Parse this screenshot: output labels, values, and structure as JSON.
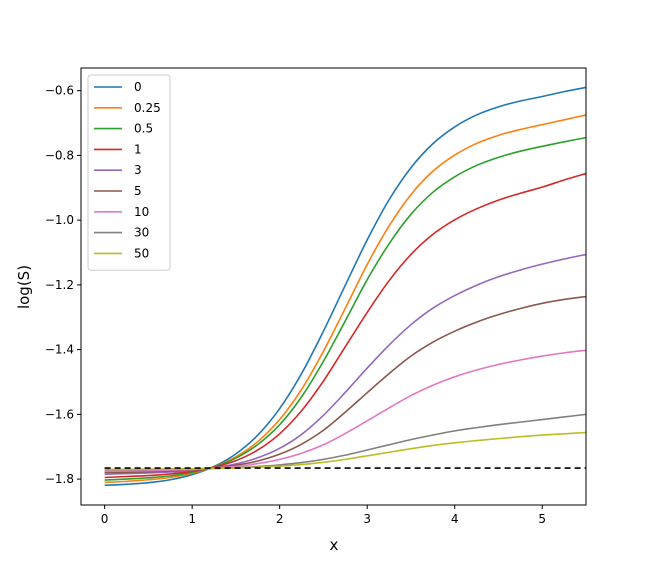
{
  "chart_data": {
    "type": "line",
    "title": "",
    "xlabel": "x",
    "ylabel": "log(S)",
    "xlim": [
      -0.27,
      5.5
    ],
    "ylim": [
      -1.88,
      -0.53
    ],
    "xticks": [
      0,
      1,
      2,
      3,
      4,
      5
    ],
    "yticks": [
      -1.8,
      -1.6,
      -1.4,
      -1.2,
      -1.0,
      -0.8,
      -0.6
    ],
    "ytick_labels": [
      "−1.8",
      "−1.6",
      "−1.4",
      "−1.2",
      "−1.0",
      "−0.8",
      "−0.6"
    ],
    "grid": false,
    "legend_position": "top-left",
    "x": [
      0,
      0.25,
      0.5,
      0.75,
      1,
      1.25,
      1.5,
      1.75,
      2,
      2.25,
      2.5,
      2.75,
      3,
      3.25,
      3.5,
      3.75,
      4,
      4.25,
      4.5,
      4.75,
      5,
      5.25,
      5.5
    ],
    "series": [
      {
        "name": "0",
        "color": "#1f77b4",
        "values": [
          -1.819,
          -1.816,
          -1.811,
          -1.802,
          -1.786,
          -1.761,
          -1.722,
          -1.664,
          -1.582,
          -1.474,
          -1.343,
          -1.201,
          -1.061,
          -0.937,
          -0.838,
          -0.764,
          -0.712,
          -0.675,
          -0.65,
          -0.632,
          -0.618,
          -0.603,
          -0.59
        ]
      },
      {
        "name": "0.25",
        "color": "#ff7f0e",
        "values": [
          -1.81,
          -1.807,
          -1.802,
          -1.795,
          -1.782,
          -1.762,
          -1.731,
          -1.684,
          -1.616,
          -1.523,
          -1.405,
          -1.272,
          -1.137,
          -1.018,
          -0.921,
          -0.849,
          -0.799,
          -0.763,
          -0.738,
          -0.72,
          -0.705,
          -0.69,
          -0.675
        ]
      },
      {
        "name": "0.5",
        "color": "#2ca02c",
        "values": [
          -1.803,
          -1.8,
          -1.796,
          -1.79,
          -1.779,
          -1.762,
          -1.735,
          -1.693,
          -1.632,
          -1.546,
          -1.436,
          -1.311,
          -1.184,
          -1.073,
          -0.982,
          -0.914,
          -0.866,
          -0.831,
          -0.806,
          -0.787,
          -0.772,
          -0.758,
          -0.745
        ]
      },
      {
        "name": "1",
        "color": "#d62728",
        "values": [
          -1.795,
          -1.792,
          -1.789,
          -1.784,
          -1.776,
          -1.763,
          -1.743,
          -1.71,
          -1.66,
          -1.589,
          -1.497,
          -1.391,
          -1.285,
          -1.187,
          -1.106,
          -1.044,
          -0.999,
          -0.965,
          -0.938,
          -0.917,
          -0.898,
          -0.876,
          -0.856
        ]
      },
      {
        "name": "3",
        "color": "#9467bd",
        "values": [
          -1.785,
          -1.783,
          -1.781,
          -1.778,
          -1.773,
          -1.765,
          -1.753,
          -1.734,
          -1.705,
          -1.662,
          -1.603,
          -1.532,
          -1.457,
          -1.386,
          -1.323,
          -1.272,
          -1.233,
          -1.201,
          -1.175,
          -1.154,
          -1.136,
          -1.12,
          -1.106
        ]
      },
      {
        "name": "5",
        "color": "#8c564b",
        "values": [
          -1.78,
          -1.779,
          -1.777,
          -1.775,
          -1.772,
          -1.766,
          -1.757,
          -1.744,
          -1.723,
          -1.692,
          -1.649,
          -1.593,
          -1.533,
          -1.474,
          -1.42,
          -1.377,
          -1.343,
          -1.315,
          -1.292,
          -1.273,
          -1.257,
          -1.245,
          -1.236
        ]
      },
      {
        "name": "10",
        "color": "#e377c2",
        "values": [
          -1.776,
          -1.775,
          -1.774,
          -1.772,
          -1.77,
          -1.766,
          -1.761,
          -1.752,
          -1.739,
          -1.72,
          -1.694,
          -1.659,
          -1.62,
          -1.58,
          -1.542,
          -1.51,
          -1.484,
          -1.463,
          -1.446,
          -1.432,
          -1.42,
          -1.41,
          -1.402
        ]
      },
      {
        "name": "30",
        "color": "#7f7f7f",
        "values": [
          -1.771,
          -1.771,
          -1.77,
          -1.769,
          -1.768,
          -1.767,
          -1.765,
          -1.761,
          -1.756,
          -1.749,
          -1.739,
          -1.726,
          -1.71,
          -1.694,
          -1.678,
          -1.664,
          -1.651,
          -1.641,
          -1.632,
          -1.624,
          -1.616,
          -1.608,
          -1.6
        ]
      },
      {
        "name": "50",
        "color": "#bcbd22",
        "values": [
          -1.77,
          -1.77,
          -1.769,
          -1.769,
          -1.768,
          -1.767,
          -1.766,
          -1.763,
          -1.76,
          -1.755,
          -1.748,
          -1.739,
          -1.728,
          -1.717,
          -1.706,
          -1.696,
          -1.688,
          -1.681,
          -1.675,
          -1.669,
          -1.664,
          -1.66,
          -1.656
        ]
      }
    ],
    "reference_line": {
      "y": -1.766,
      "style": "dashed",
      "color": "#000000"
    }
  }
}
